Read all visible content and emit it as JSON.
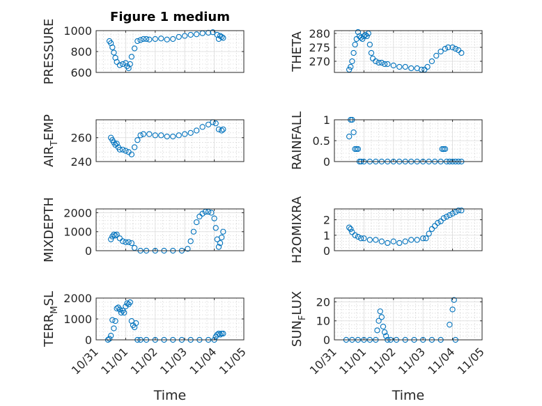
{
  "figure": {
    "title": "Figure 1 medium"
  },
  "colors": {
    "marker": "#0072BD",
    "axis": "#262626",
    "grid": "#dcdcdc",
    "background": "#ffffff"
  },
  "chart_data": [
    {
      "id": "pressure",
      "type": "scatter",
      "marker": "circle",
      "ylabel": "PRESSURE",
      "ylabel_sub": null,
      "ylabel_tail": null,
      "ylim": [
        600,
        1000
      ],
      "yticks": [
        600,
        800,
        1000
      ],
      "xlim": [
        "10/31",
        "11/05"
      ],
      "x": [
        0.45,
        0.5,
        0.55,
        0.6,
        0.65,
        0.7,
        0.8,
        0.9,
        1.0,
        1.05,
        1.1,
        1.15,
        1.2,
        1.3,
        1.4,
        1.5,
        1.6,
        1.7,
        1.8,
        2.0,
        2.2,
        2.4,
        2.6,
        2.8,
        3.0,
        3.2,
        3.4,
        3.6,
        3.8,
        3.95,
        4.1,
        4.15,
        4.2,
        4.25,
        4.3
      ],
      "y": [
        900,
        880,
        840,
        790,
        740,
        700,
        670,
        680,
        690,
        660,
        640,
        680,
        750,
        830,
        900,
        910,
        920,
        920,
        915,
        920,
        925,
        915,
        920,
        940,
        950,
        960,
        965,
        975,
        980,
        985,
        960,
        920,
        950,
        940,
        930
      ]
    },
    {
      "id": "theta",
      "type": "scatter",
      "marker": "circle",
      "ylabel": "THETA",
      "ylabel_sub": null,
      "ylabel_tail": null,
      "ylim": [
        266,
        281
      ],
      "yticks": [
        270,
        275,
        280
      ],
      "xlim": [
        "10/31",
        "11/05"
      ],
      "x": [
        0.5,
        0.55,
        0.6,
        0.65,
        0.7,
        0.75,
        0.8,
        0.85,
        0.9,
        0.95,
        1.0,
        1.05,
        1.1,
        1.15,
        1.2,
        1.25,
        1.3,
        1.4,
        1.5,
        1.6,
        1.7,
        1.8,
        2.0,
        2.2,
        2.4,
        2.6,
        2.8,
        2.95,
        3.05,
        3.15,
        3.3,
        3.45,
        3.6,
        3.75,
        3.85,
        4.0,
        4.1,
        4.2,
        4.3
      ],
      "y": [
        267,
        268,
        270,
        273,
        276,
        278,
        280.5,
        279,
        278.5,
        278,
        279,
        279.5,
        279,
        280,
        276,
        273,
        271,
        270,
        269.5,
        269.5,
        269,
        269,
        268.5,
        268,
        268,
        267.5,
        267.5,
        267,
        267,
        268,
        270,
        272,
        273.5,
        274.5,
        275,
        275,
        274.5,
        274,
        273
      ]
    },
    {
      "id": "air_temp",
      "type": "scatter",
      "marker": "circle",
      "ylabel": "AIR",
      "ylabel_sub": "T",
      "ylabel_tail": "EMP",
      "ylim": [
        240,
        275
      ],
      "yticks": [
        240,
        260
      ],
      "xlim": [
        "10/31",
        "11/05"
      ],
      "x": [
        0.5,
        0.55,
        0.6,
        0.65,
        0.7,
        0.75,
        0.8,
        0.9,
        1.0,
        1.1,
        1.2,
        1.3,
        1.4,
        1.5,
        1.6,
        1.8,
        2.0,
        2.2,
        2.4,
        2.6,
        2.8,
        3.0,
        3.2,
        3.4,
        3.6,
        3.8,
        3.95,
        4.05,
        4.15,
        4.25,
        4.3
      ],
      "y": [
        260,
        258,
        256,
        254,
        255,
        252,
        250,
        250,
        249,
        248,
        246,
        252,
        258,
        262,
        263,
        263,
        262,
        262,
        261,
        261,
        262,
        263,
        264,
        266,
        269,
        271,
        273,
        272,
        267,
        266,
        267
      ]
    },
    {
      "id": "rainfall",
      "type": "scatter",
      "marker": "circle",
      "ylabel": "RAINFALL",
      "ylabel_sub": null,
      "ylabel_tail": null,
      "ylim": [
        0,
        1
      ],
      "yticks": [
        0,
        0.5,
        1
      ],
      "xlim": [
        "10/31",
        "11/05"
      ],
      "x": [
        0.5,
        0.55,
        0.6,
        0.65,
        0.7,
        0.75,
        0.8,
        0.85,
        0.9,
        1.0,
        1.2,
        1.4,
        1.6,
        1.8,
        2.0,
        2.2,
        2.4,
        2.6,
        2.8,
        3.0,
        3.2,
        3.4,
        3.6,
        3.65,
        3.7,
        3.75,
        3.8,
        3.9,
        4.0,
        4.1,
        4.2,
        4.3
      ],
      "y": [
        0.6,
        1.0,
        1.0,
        0.7,
        0.3,
        0.3,
        0.3,
        0,
        0,
        0,
        0,
        0,
        0,
        0,
        0,
        0,
        0,
        0,
        0,
        0,
        0,
        0,
        0,
        0.3,
        0.3,
        0.3,
        0,
        0,
        0,
        0,
        0,
        0
      ]
    },
    {
      "id": "mixdepth",
      "type": "scatter",
      "marker": "circle",
      "ylabel": "MIXDEPTH",
      "ylabel_sub": null,
      "ylabel_tail": null,
      "ylim": [
        0,
        2200
      ],
      "yticks": [
        0,
        1000,
        2000
      ],
      "xlim": [
        "10/31",
        "11/05"
      ],
      "x": [
        0.5,
        0.55,
        0.6,
        0.65,
        0.7,
        0.8,
        0.9,
        1.0,
        1.1,
        1.2,
        1.3,
        1.5,
        1.7,
        2.0,
        2.3,
        2.6,
        2.9,
        3.1,
        3.2,
        3.3,
        3.4,
        3.5,
        3.6,
        3.7,
        3.8,
        3.9,
        4.0,
        4.05,
        4.1,
        4.15,
        4.2,
        4.25,
        4.3
      ],
      "y": [
        600,
        750,
        850,
        800,
        850,
        650,
        500,
        450,
        450,
        400,
        150,
        0,
        0,
        0,
        0,
        0,
        0,
        100,
        500,
        1000,
        1500,
        1800,
        1950,
        2050,
        2050,
        2000,
        1700,
        1200,
        600,
        200,
        400,
        700,
        1000
      ]
    },
    {
      "id": "h2omixra",
      "type": "scatter",
      "marker": "circle",
      "ylabel": "H2OMIXRA",
      "ylabel_sub": null,
      "ylabel_tail": null,
      "ylim": [
        0,
        2.7
      ],
      "yticks": [
        0,
        1,
        2
      ],
      "xlim": [
        "10/31",
        "11/05"
      ],
      "x": [
        0.5,
        0.55,
        0.6,
        0.7,
        0.8,
        0.9,
        1.0,
        1.2,
        1.4,
        1.6,
        1.8,
        2.0,
        2.2,
        2.4,
        2.6,
        2.8,
        3.0,
        3.1,
        3.2,
        3.3,
        3.4,
        3.5,
        3.6,
        3.7,
        3.8,
        3.9,
        4.0,
        4.1,
        4.2,
        4.3
      ],
      "y": [
        1.5,
        1.4,
        1.2,
        1.0,
        0.9,
        0.8,
        0.8,
        0.7,
        0.7,
        0.6,
        0.5,
        0.6,
        0.5,
        0.6,
        0.7,
        0.7,
        0.8,
        0.8,
        1.1,
        1.4,
        1.6,
        1.8,
        1.9,
        2.1,
        2.2,
        2.3,
        2.4,
        2.5,
        2.6,
        2.6
      ]
    },
    {
      "id": "terr_msl",
      "type": "scatter",
      "marker": "circle",
      "ylabel": "TERR",
      "ylabel_sub": "M",
      "ylabel_tail": "SL",
      "ylim": [
        0,
        2000
      ],
      "yticks": [
        0,
        1000,
        2000
      ],
      "xlim": [
        "10/31",
        "11/05"
      ],
      "x": [
        0.4,
        0.45,
        0.5,
        0.55,
        0.6,
        0.65,
        0.7,
        0.75,
        0.8,
        0.85,
        0.9,
        0.95,
        1.0,
        1.05,
        1.1,
        1.15,
        1.2,
        1.25,
        1.3,
        1.35,
        1.4,
        1.5,
        1.7,
        2.0,
        2.3,
        2.6,
        2.9,
        3.2,
        3.5,
        3.8,
        4.0,
        4.05,
        4.1,
        4.15,
        4.2,
        4.25,
        4.3
      ],
      "y": [
        0,
        50,
        200,
        950,
        550,
        900,
        1500,
        1550,
        1450,
        1300,
        1400,
        1300,
        1600,
        1750,
        1700,
        1800,
        900,
        700,
        600,
        800,
        0,
        0,
        0,
        0,
        0,
        0,
        0,
        0,
        0,
        0,
        0,
        150,
        250,
        300,
        250,
        300,
        300
      ]
    },
    {
      "id": "sun_flux",
      "type": "scatter",
      "marker": "circle",
      "ylabel": "SUN",
      "ylabel_sub": "F",
      "ylabel_tail": "LUX",
      "ylim": [
        0,
        22
      ],
      "yticks": [
        0,
        10,
        20
      ],
      "xlim": [
        "10/31",
        "11/05"
      ],
      "x": [
        0.4,
        0.6,
        0.8,
        1.0,
        1.2,
        1.4,
        1.45,
        1.5,
        1.55,
        1.6,
        1.65,
        1.7,
        1.75,
        1.8,
        1.9,
        2.1,
        2.4,
        2.7,
        3.0,
        3.3,
        3.6,
        3.9,
        4.0,
        4.05,
        4.1
      ],
      "y": [
        0,
        0,
        0,
        0,
        0,
        0,
        5,
        10,
        15,
        12,
        7,
        4,
        2,
        0,
        0,
        0,
        0,
        0,
        0,
        0,
        0,
        8,
        16,
        21,
        0
      ]
    }
  ],
  "xaxis": {
    "ticklabels": [
      "10/31",
      "11/01",
      "11/02",
      "11/03",
      "11/04",
      "11/05"
    ],
    "label": "Time"
  }
}
